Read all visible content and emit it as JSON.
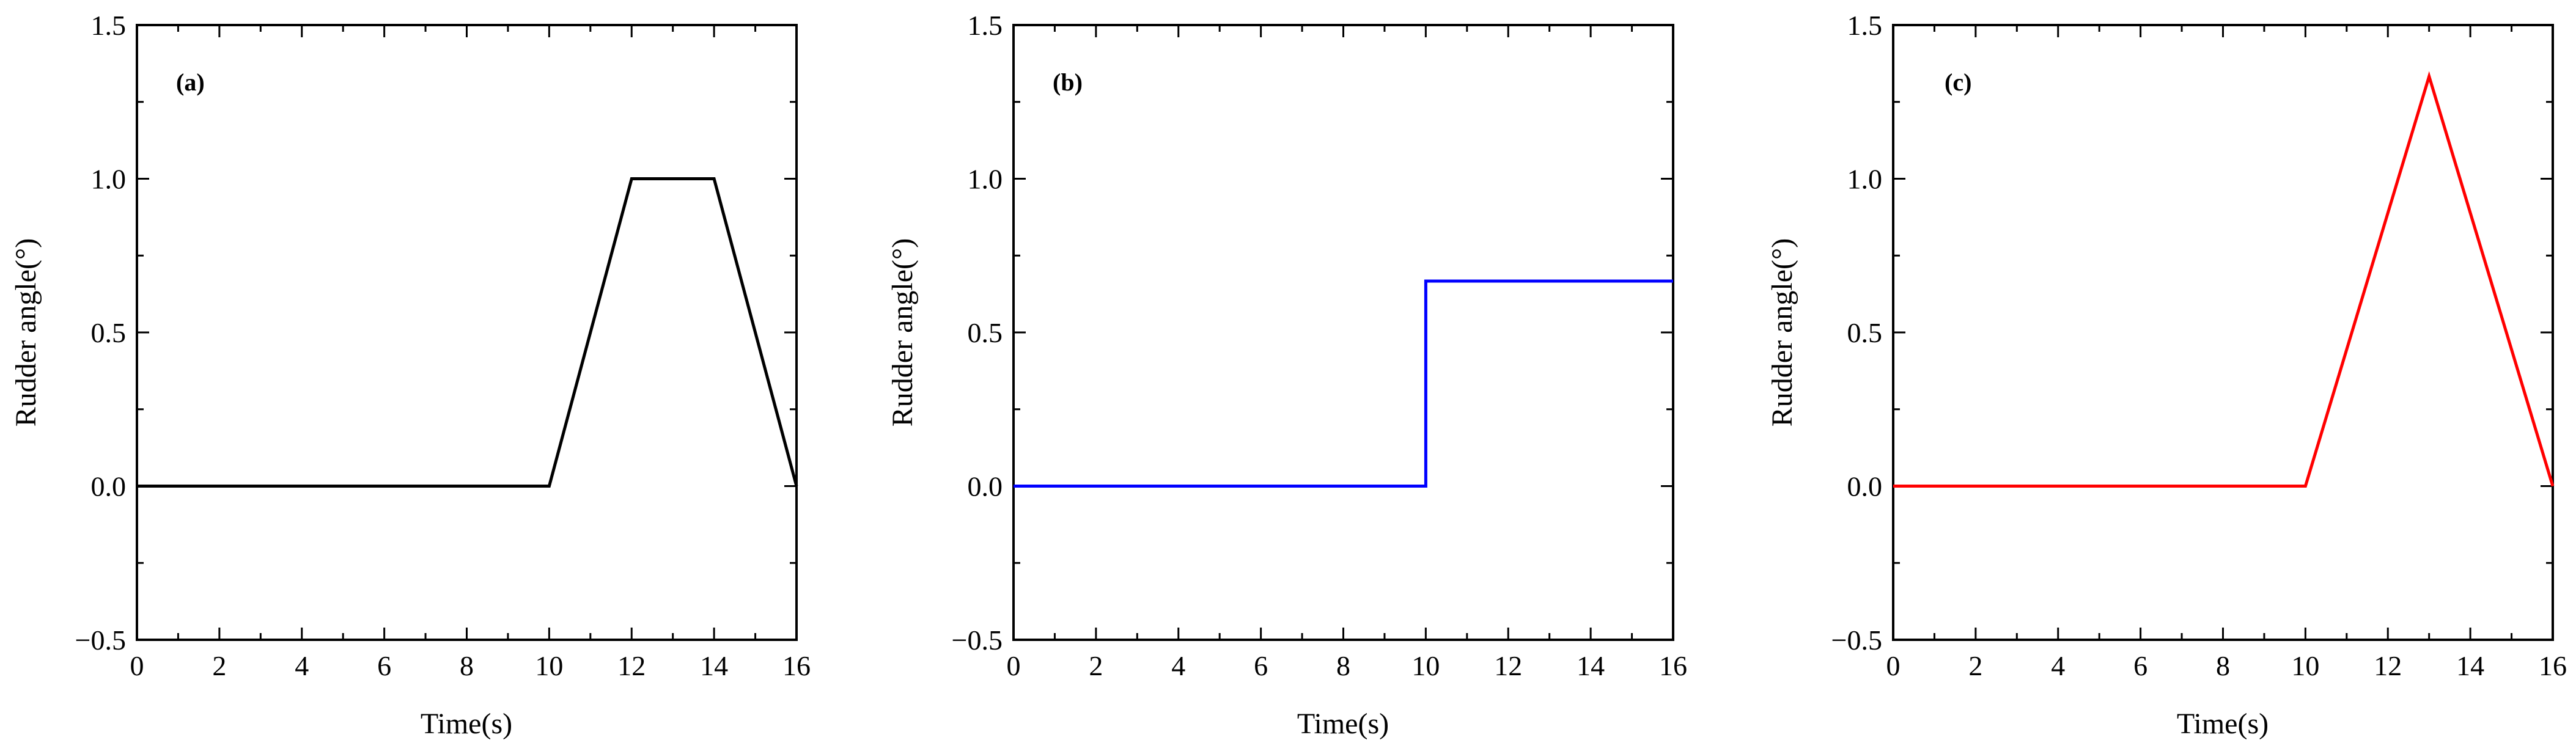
{
  "chart_data": [
    {
      "type": "line",
      "panel_label": "(a)",
      "xlabel": "Time(s)",
      "ylabel": "Rudder angle(°)",
      "xlim": [
        0,
        16
      ],
      "ylim": [
        -0.5,
        1.5
      ],
      "xticks": [
        "0",
        "2",
        "4",
        "6",
        "8",
        "10",
        "12",
        "14",
        "16"
      ],
      "yticks": [
        "−0.5",
        "0.0",
        "0.5",
        "1.0",
        "1.5"
      ],
      "color": "#000000",
      "series": [
        {
          "x": [
            0,
            10,
            12,
            14,
            16
          ],
          "y": [
            0,
            0,
            1.0,
            1.0,
            0
          ]
        }
      ]
    },
    {
      "type": "line",
      "panel_label": "(b)",
      "xlabel": "Time(s)",
      "ylabel": "Rudder angle(°)",
      "xlim": [
        0,
        16
      ],
      "ylim": [
        -0.5,
        1.5
      ],
      "xticks": [
        "0",
        "2",
        "4",
        "6",
        "8",
        "10",
        "12",
        "14",
        "16"
      ],
      "yticks": [
        "−0.5",
        "0.0",
        "0.5",
        "1.0",
        "1.5"
      ],
      "color": "#0000ff",
      "series": [
        {
          "x": [
            0,
            10,
            10,
            16
          ],
          "y": [
            0,
            0,
            0.667,
            0.667
          ]
        }
      ]
    },
    {
      "type": "line",
      "panel_label": "(c)",
      "xlabel": "Time(s)",
      "ylabel": "Rudder angle(°)",
      "xlim": [
        0,
        16
      ],
      "ylim": [
        -0.5,
        1.5
      ],
      "xticks": [
        "0",
        "2",
        "4",
        "6",
        "8",
        "10",
        "12",
        "14",
        "16"
      ],
      "yticks": [
        "−0.5",
        "0.0",
        "0.5",
        "1.0",
        "1.5"
      ],
      "color": "#ff0000",
      "series": [
        {
          "x": [
            0,
            10,
            13,
            16
          ],
          "y": [
            0,
            0,
            1.333,
            0
          ]
        }
      ]
    }
  ]
}
